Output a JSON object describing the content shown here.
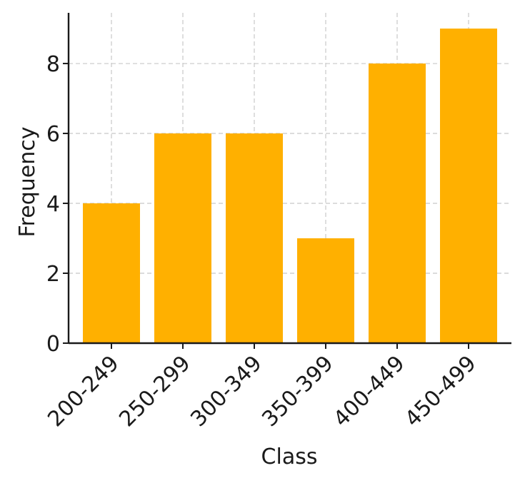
{
  "chart_data": {
    "type": "bar",
    "categories": [
      "200-249",
      "250-299",
      "300-349",
      "350-399",
      "400-449",
      "450-499"
    ],
    "values": [
      4,
      6,
      6,
      3,
      8,
      9
    ],
    "title": "",
    "xlabel": "Class",
    "ylabel": "Frequency",
    "ylim": [
      0,
      9.45
    ],
    "yticks": [
      0,
      2,
      4,
      6,
      8
    ],
    "grid": true,
    "bar_color": "#FFB000"
  }
}
